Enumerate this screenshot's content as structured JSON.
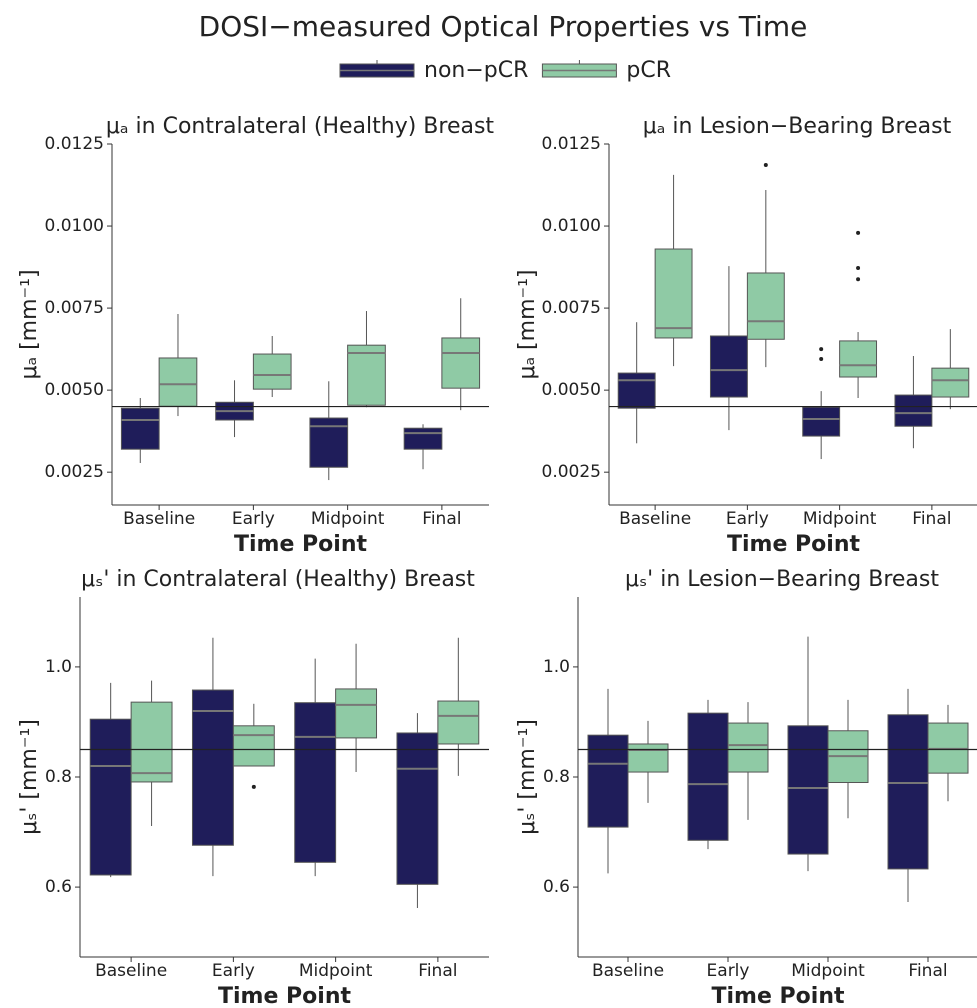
{
  "title": "DOSI−measured Optical Properties vs Time",
  "chart_data": [
    {
      "type": "boxplot",
      "title": "μₐ in Contralateral (Healthy) Breast",
      "xlabel": "Time Point",
      "ylabel": "μₐ [mm⁻¹]",
      "categories": [
        "Baseline",
        "Early",
        "Midpoint",
        "Final"
      ],
      "ylim": [
        0.0015,
        0.0125
      ],
      "yticks": [
        0.0025,
        {
          "value": 0.005,
          "label": "0.0050"
        },
        0.0075,
        {
          "value": 0.01,
          "label": "0.0100"
        },
        0.0125
      ],
      "hline": 0.0045,
      "series": [
        {
          "name": "non−pCR",
          "color": "#1f1d5a",
          "values": [
            {
              "min": 0.00278,
              "q1": 0.0032,
              "median": 0.00409,
              "q3": 0.00445,
              "max": 0.00476,
              "outliers": []
            },
            {
              "min": 0.00357,
              "q1": 0.00409,
              "median": 0.00436,
              "q3": 0.00463,
              "max": 0.0053,
              "outliers": []
            },
            {
              "min": 0.00226,
              "q1": 0.00265,
              "median": 0.0039,
              "q3": 0.00415,
              "max": 0.00527,
              "outliers": []
            },
            {
              "min": 0.00259,
              "q1": 0.0032,
              "median": 0.00369,
              "q3": 0.00384,
              "max": 0.00396,
              "outliers": []
            }
          ]
        },
        {
          "name": "pCR",
          "color": "#8fcaa5",
          "values": [
            {
              "min": 0.00421,
              "q1": 0.00451,
              "median": 0.00518,
              "q3": 0.00598,
              "max": 0.00732,
              "outliers": []
            },
            {
              "min": 0.00479,
              "q1": 0.00503,
              "median": 0.00546,
              "q3": 0.0061,
              "max": 0.00665,
              "outliers": []
            },
            {
              "min": 0.00448,
              "q1": 0.00454,
              "median": 0.00613,
              "q3": 0.00637,
              "max": 0.00741,
              "outliers": []
            },
            {
              "min": 0.00439,
              "q1": 0.00506,
              "median": 0.00613,
              "q3": 0.00659,
              "max": 0.0078,
              "outliers": []
            }
          ]
        }
      ]
    },
    {
      "type": "boxplot",
      "title": "μₐ in Lesion−Bearing Breast",
      "xlabel": "Time Point",
      "ylabel": "μₐ [mm⁻¹]",
      "categories": [
        "Baseline",
        "Early",
        "Midpoint",
        "Final"
      ],
      "ylim": [
        0.0015,
        0.0125
      ],
      "yticks": [
        0.0025,
        {
          "value": 0.005,
          "label": "0.0050"
        },
        0.0075,
        {
          "value": 0.01,
          "label": "0.0100"
        },
        0.0125
      ],
      "hline": 0.0045,
      "series": [
        {
          "name": "non−pCR",
          "color": "#1f1d5a",
          "values": [
            {
              "min": 0.00338,
              "q1": 0.00445,
              "median": 0.0053,
              "q3": 0.00552,
              "max": 0.00707,
              "outliers": []
            },
            {
              "min": 0.00378,
              "q1": 0.00479,
              "median": 0.00561,
              "q3": 0.00665,
              "max": 0.00878,
              "outliers": []
            },
            {
              "min": 0.0029,
              "q1": 0.0036,
              "median": 0.00412,
              "q3": 0.00448,
              "max": 0.00497,
              "outliers": [
                0.00625,
                0.00595
              ]
            },
            {
              "min": 0.00323,
              "q1": 0.0039,
              "median": 0.0043,
              "q3": 0.00485,
              "max": 0.00604,
              "outliers": []
            }
          ]
        },
        {
          "name": "pCR",
          "color": "#8fcaa5",
          "values": [
            {
              "min": 0.00573,
              "q1": 0.00659,
              "median": 0.00689,
              "q3": 0.0093,
              "max": 0.01156,
              "outliers": []
            },
            {
              "min": 0.0057,
              "q1": 0.00655,
              "median": 0.0071,
              "q3": 0.00857,
              "max": 0.0111,
              "outliers": [
                0.01186
              ]
            },
            {
              "min": 0.00476,
              "q1": 0.0054,
              "median": 0.00576,
              "q3": 0.0065,
              "max": 0.00677,
              "outliers": [
                0.00979,
                0.00872,
                0.00838
              ]
            },
            {
              "min": 0.00442,
              "q1": 0.00479,
              "median": 0.0053,
              "q3": 0.00567,
              "max": 0.00686,
              "outliers": []
            }
          ]
        }
      ]
    },
    {
      "type": "boxplot",
      "title": "μₛ' in Contralateral (Healthy) Breast",
      "xlabel": "Time Point",
      "ylabel": "μₛ' [mm⁻¹]",
      "categories": [
        "Baseline",
        "Early",
        "Midpoint",
        "Final"
      ],
      "ylim": [
        0.473,
        1.127
      ],
      "yticks": [
        0.6,
        0.8,
        {
          "value": 1,
          "label": "1.0"
        }
      ],
      "hline": 0.85,
      "series": [
        {
          "name": "non−pCR",
          "color": "#1f1d5a",
          "values": [
            {
              "min": 0.618,
              "q1": 0.622,
              "median": 0.82,
              "q3": 0.905,
              "max": 0.971,
              "outliers": []
            },
            {
              "min": 0.62,
              "q1": 0.676,
              "median": 0.92,
              "q3": 0.958,
              "max": 1.053,
              "outliers": []
            },
            {
              "min": 0.62,
              "q1": 0.645,
              "median": 0.873,
              "q3": 0.935,
              "max": 1.015,
              "outliers": []
            },
            {
              "min": 0.562,
              "q1": 0.605,
              "median": 0.815,
              "q3": 0.88,
              "max": 0.916,
              "outliers": []
            }
          ]
        },
        {
          "name": "pCR",
          "color": "#8fcaa5",
          "values": [
            {
              "min": 0.711,
              "q1": 0.791,
              "median": 0.807,
              "q3": 0.936,
              "max": 0.975,
              "outliers": []
            },
            {
              "min": 0.82,
              "q1": 0.82,
              "median": 0.876,
              "q3": 0.893,
              "max": 0.933,
              "outliers": [
                0.782
              ]
            },
            {
              "min": 0.809,
              "q1": 0.871,
              "median": 0.931,
              "q3": 0.96,
              "max": 1.042,
              "outliers": []
            },
            {
              "min": 0.802,
              "q1": 0.86,
              "median": 0.911,
              "q3": 0.938,
              "max": 1.053,
              "outliers": []
            }
          ]
        }
      ]
    },
    {
      "type": "boxplot",
      "title": "μₛ' in Lesion−Bearing Breast",
      "xlabel": "Time Point",
      "ylabel": "μₛ' [mm⁻¹]",
      "categories": [
        "Baseline",
        "Early",
        "Midpoint",
        "Final"
      ],
      "ylim": [
        0.473,
        1.127
      ],
      "yticks": [
        0.6,
        0.8,
        {
          "value": 1,
          "label": "1.0"
        }
      ],
      "hline": 0.85,
      "series": [
        {
          "name": "non−pCR",
          "color": "#1f1d5a",
          "values": [
            {
              "min": 0.625,
              "q1": 0.709,
              "median": 0.824,
              "q3": 0.876,
              "max": 0.96,
              "outliers": []
            },
            {
              "min": 0.669,
              "q1": 0.685,
              "median": 0.787,
              "q3": 0.916,
              "max": 0.94,
              "outliers": []
            },
            {
              "min": 0.629,
              "q1": 0.66,
              "median": 0.78,
              "q3": 0.893,
              "max": 1.055,
              "outliers": []
            },
            {
              "min": 0.573,
              "q1": 0.633,
              "median": 0.789,
              "q3": 0.913,
              "max": 0.96,
              "outliers": []
            }
          ]
        },
        {
          "name": "pCR",
          "color": "#8fcaa5",
          "values": [
            {
              "min": 0.753,
              "q1": 0.809,
              "median": 0.849,
              "q3": 0.86,
              "max": 0.902,
              "outliers": []
            },
            {
              "min": 0.722,
              "q1": 0.809,
              "median": 0.858,
              "q3": 0.898,
              "max": 0.936,
              "outliers": []
            },
            {
              "min": 0.725,
              "q1": 0.79,
              "median": 0.838,
              "q3": 0.884,
              "max": 0.94,
              "outliers": []
            },
            {
              "min": 0.756,
              "q1": 0.807,
              "median": 0.851,
              "q3": 0.898,
              "max": 0.931,
              "outliers": []
            }
          ]
        }
      ]
    }
  ]
}
